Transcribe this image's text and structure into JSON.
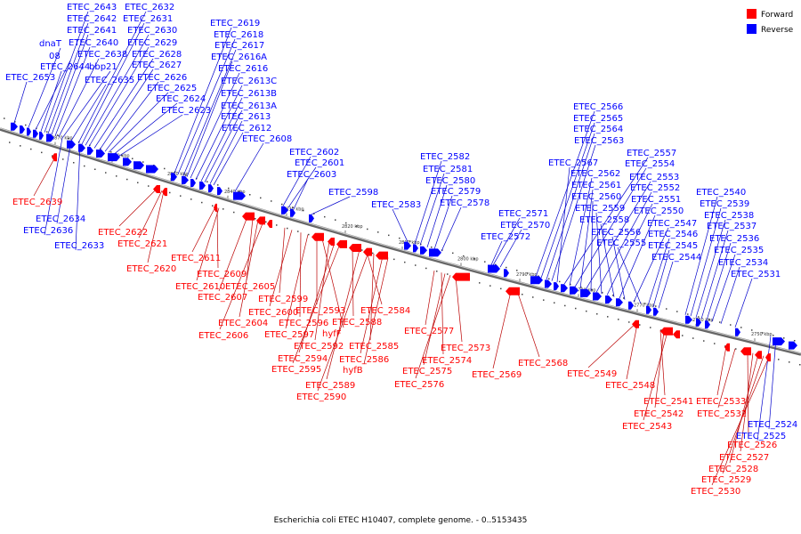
{
  "legend": {
    "forward": "Forward",
    "reverse": "Reverse"
  },
  "caption": "Escherichia coli ETEC H10407, complete genome. - 0..5153435",
  "colors": {
    "forward": "#ff0000",
    "reverse": "#0000ff",
    "forward_line": "#bb0000",
    "reverse_line": "#0000cc",
    "axis": "#888888"
  },
  "ticks": [
    "2870 kbp",
    "2860 kbp",
    "2850 kbp",
    "2840 kbp",
    "2830 kbp",
    "2820 kbp",
    "2810 kbp",
    "2800 kbp",
    "2790 kbp",
    "2780 kbp",
    "2770 kbp",
    "2760 kbp",
    "2750 kbp"
  ],
  "reverse_labels": [
    "ETEC_2653",
    "dnaT",
    "08",
    "ETEC_2644",
    "ETEC_2643",
    "ETEC_2642",
    "ETEC_2641",
    "ETEC_2640",
    "ETEC_2638",
    "bbp21",
    "ETEC_2635",
    "ETEC_2632",
    "ETEC_2631",
    "ETEC_2630",
    "ETEC_2629",
    "ETEC_2628",
    "ETEC_2627",
    "ETEC_2626",
    "ETEC_2625",
    "ETEC_2624",
    "ETEC_2623",
    "ETEC_2619",
    "ETEC_2618",
    "ETEC_2617",
    "ETEC_2616A",
    "ETEC_2616",
    "ETEC_2613C",
    "ETEC_2613B",
    "ETEC_2613A",
    "ETEC_2613",
    "ETEC_2612",
    "ETEC_2608",
    "ETEC_2602",
    "ETEC_2601",
    "ETEC_2603",
    "ETEC_2598",
    "ETEC_2583",
    "ETEC_2582",
    "ETEC_2581",
    "ETEC_2580",
    "ETEC_2579",
    "ETEC_2578",
    "ETEC_2571",
    "ETEC_2570",
    "ETEC_2572",
    "ETEC_2566",
    "ETEC_2565",
    "ETEC_2564",
    "ETEC_2563",
    "ETEC_2567",
    "ETEC_2557",
    "ETEC_2562",
    "ETEC_2554",
    "ETEC_2561",
    "ETEC_2553",
    "ETEC_2560",
    "ETEC_2552",
    "ETEC_2559",
    "ETEC_2551",
    "ETEC_2558",
    "ETEC_2550",
    "ETEC_2556",
    "ETEC_2547",
    "ETEC_2555",
    "ETEC_2546",
    "ETEC_2545",
    "ETEC_2544",
    "ETEC_2540",
    "ETEC_2539",
    "ETEC_2538",
    "ETEC_2537",
    "ETEC_2536",
    "ETEC_2535",
    "ETEC_2534",
    "ETEC_2531",
    "ETEC_2634",
    "ETEC_2636",
    "ETEC_2633",
    "ETEC_2524",
    "ETEC_2525"
  ],
  "forward_labels": [
    "ETEC_2639",
    "ETEC_2622",
    "ETEC_2621",
    "ETEC_2620",
    "ETEC_2611",
    "ETEC_2609",
    "ETEC_2610",
    "ETEC_2607",
    "ETEC_2605",
    "ETEC_2604",
    "ETEC_2606",
    "ETEC_2599",
    "ETEC_2600",
    "ETEC_2596",
    "ETEC_2597",
    "ETEC_2593",
    "hyfF",
    "ETEC_2592",
    "ETEC_2594",
    "ETEC_2595",
    "ETEC_2588",
    "ETEC_2584",
    "ETEC_2585",
    "ETEC_2586",
    "hyfB",
    "ETEC_2589",
    "ETEC_2590",
    "ETEC_2577",
    "ETEC_2574",
    "ETEC_2573",
    "ETEC_2575",
    "ETEC_2576",
    "ETEC_2569",
    "ETEC_2568",
    "ETEC_2549",
    "ETEC_2548",
    "ETEC_2541",
    "ETEC_2542",
    "ETEC_2543",
    "ETEC_2533",
    "ETEC_2532",
    "ETEC_2526",
    "ETEC_2527",
    "ETEC_2528",
    "ETEC_2529",
    "ETEC_2530"
  ]
}
